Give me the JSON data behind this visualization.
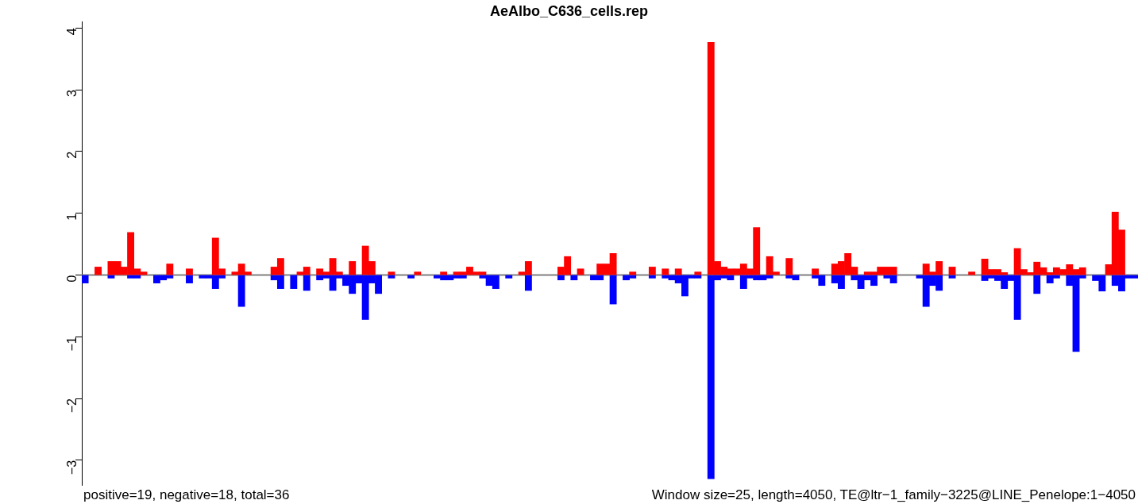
{
  "chart_data": {
    "type": "bar",
    "title": "AeAlbo_C636_cells.rep",
    "stacked": true,
    "tick_labels": "y",
    "categories": [
      null,
      null,
      null,
      null,
      null,
      null,
      null,
      null,
      null,
      null,
      null,
      null,
      null,
      null,
      null,
      null,
      null,
      null,
      null,
      null,
      null,
      null,
      null,
      null,
      null,
      null,
      null,
      null,
      null,
      null,
      null,
      null,
      null,
      null,
      null,
      null,
      null,
      null,
      null,
      null,
      null,
      null,
      null,
      null,
      null,
      null,
      null,
      null,
      null,
      null,
      null,
      null,
      null,
      null,
      null,
      null,
      null,
      null,
      null,
      null,
      null,
      null,
      null,
      null,
      null,
      null,
      null,
      null,
      null,
      null,
      null,
      null,
      null,
      null,
      null,
      null,
      null,
      null,
      null,
      null,
      null,
      null,
      null,
      null,
      null,
      null,
      null,
      null,
      null,
      null,
      null,
      null,
      null,
      null,
      null,
      null,
      null,
      null,
      null,
      null,
      null,
      null,
      null,
      null,
      null,
      null,
      null,
      null,
      null,
      null,
      null,
      null,
      null,
      null,
      null,
      null,
      null,
      null,
      null,
      null,
      null,
      null,
      null,
      null,
      null,
      null,
      null,
      null,
      null,
      null,
      null,
      null,
      null,
      null,
      null,
      null,
      null,
      null,
      null,
      null,
      null,
      null,
      null,
      null,
      null,
      null,
      null,
      null,
      null,
      null,
      null,
      null,
      null,
      null,
      null,
      null,
      null,
      null,
      null,
      null,
      null,
      null
    ],
    "series": [
      {
        "color": "#ff0000",
        "values": [
          null,
          null,
          0.13,
          null,
          0.22,
          0.22,
          0.13,
          0.69,
          0.1,
          0.05,
          null,
          null,
          null,
          0.18,
          null,
          null,
          0.1,
          null,
          null,
          null,
          0.6,
          0.1,
          null,
          0.05,
          0.18,
          0.05,
          null,
          null,
          null,
          0.13,
          0.27,
          null,
          null,
          0.05,
          0.13,
          null,
          0.1,
          0.05,
          0.27,
          0.05,
          null,
          0.22,
          null,
          0.47,
          0.22,
          null,
          null,
          0.05,
          null,
          null,
          null,
          0.05,
          null,
          null,
          null,
          0.05,
          null,
          0.05,
          0.05,
          0.13,
          0.05,
          0.05,
          null,
          null,
          null,
          null,
          null,
          0.05,
          0.22,
          null,
          null,
          null,
          null,
          0.13,
          0.3,
          null,
          0.1,
          null,
          null,
          0.18,
          0.18,
          0.35,
          null,
          null,
          0.05,
          null,
          null,
          0.13,
          null,
          0.1,
          null,
          0.1,
          null,
          null,
          0.05,
          null,
          3.77,
          0.22,
          0.13,
          0.1,
          0.1,
          0.18,
          0.1,
          0.77,
          null,
          0.3,
          0.05,
          null,
          0.27,
          null,
          null,
          null,
          0.1,
          null,
          null,
          0.18,
          0.22,
          0.35,
          0.13,
          null,
          0.05,
          0.05,
          0.13,
          0.13,
          0.13,
          null,
          null,
          null,
          null,
          0.18,
          0.05,
          0.22,
          null,
          0.13,
          null,
          null,
          0.05,
          null,
          0.26,
          0.09,
          0.09,
          0.04,
          null,
          0.43,
          0.09,
          0.04,
          0.21,
          0.12,
          0.04,
          0.12,
          0.09,
          0.17,
          0.09,
          0.12,
          null,
          null,
          null,
          0.17,
          1.02,
          0.73,
          null,
          null
        ]
      },
      {
        "color": "#0000ff",
        "values": [
          -0.13,
          null,
          null,
          null,
          -0.05,
          null,
          null,
          -0.05,
          -0.05,
          null,
          null,
          -0.13,
          -0.08,
          -0.05,
          null,
          null,
          -0.13,
          null,
          -0.05,
          -0.05,
          -0.22,
          -0.05,
          null,
          null,
          -0.51,
          null,
          null,
          null,
          null,
          -0.08,
          -0.22,
          null,
          -0.22,
          null,
          -0.25,
          null,
          -0.08,
          -0.05,
          -0.25,
          -0.05,
          -0.17,
          -0.3,
          -0.13,
          -0.72,
          -0.13,
          -0.3,
          null,
          -0.05,
          null,
          null,
          -0.05,
          null,
          null,
          null,
          -0.05,
          -0.08,
          -0.08,
          -0.05,
          -0.05,
          null,
          null,
          -0.05,
          -0.17,
          -0.22,
          null,
          -0.05,
          null,
          null,
          -0.25,
          null,
          null,
          null,
          null,
          -0.08,
          null,
          -0.08,
          null,
          null,
          -0.08,
          -0.08,
          null,
          -0.47,
          null,
          -0.08,
          -0.05,
          null,
          null,
          -0.05,
          null,
          -0.05,
          -0.08,
          -0.13,
          -0.34,
          -0.05,
          -0.05,
          null,
          -3.3,
          -0.08,
          -0.05,
          -0.08,
          null,
          -0.22,
          -0.05,
          -0.08,
          -0.08,
          -0.05,
          null,
          null,
          -0.05,
          -0.08,
          null,
          null,
          -0.05,
          -0.17,
          null,
          -0.13,
          -0.22,
          null,
          -0.08,
          -0.22,
          -0.08,
          -0.17,
          null,
          -0.05,
          -0.13,
          null,
          null,
          null,
          -0.05,
          -0.51,
          -0.17,
          -0.25,
          null,
          -0.05,
          null,
          null,
          null,
          null,
          -0.09,
          -0.05,
          -0.09,
          -0.22,
          -0.09,
          -0.72,
          null,
          null,
          -0.3,
          null,
          -0.13,
          -0.05,
          null,
          -0.17,
          -1.24,
          -0.05,
          null,
          -0.09,
          -0.26,
          null,
          -0.17,
          -0.26,
          -0.05,
          -0.05
        ]
      }
    ],
    "ylim": [
      -3.4,
      4.1
    ],
    "yticks": [
      {
        "value": -3,
        "label": "−3"
      },
      {
        "value": -2,
        "label": "−2"
      },
      {
        "value": -1,
        "label": "−1"
      },
      0,
      1,
      2,
      3,
      4
    ],
    "ref_lines": [
      {
        "axis": "y",
        "value": 0,
        "color": "#808080"
      }
    ],
    "annotations": [
      "positive=19, negative=18, total=36",
      "Window size=25, length=4050, TE@ltr−1_family−3225@LINE_Penelope:1−4050"
    ]
  }
}
